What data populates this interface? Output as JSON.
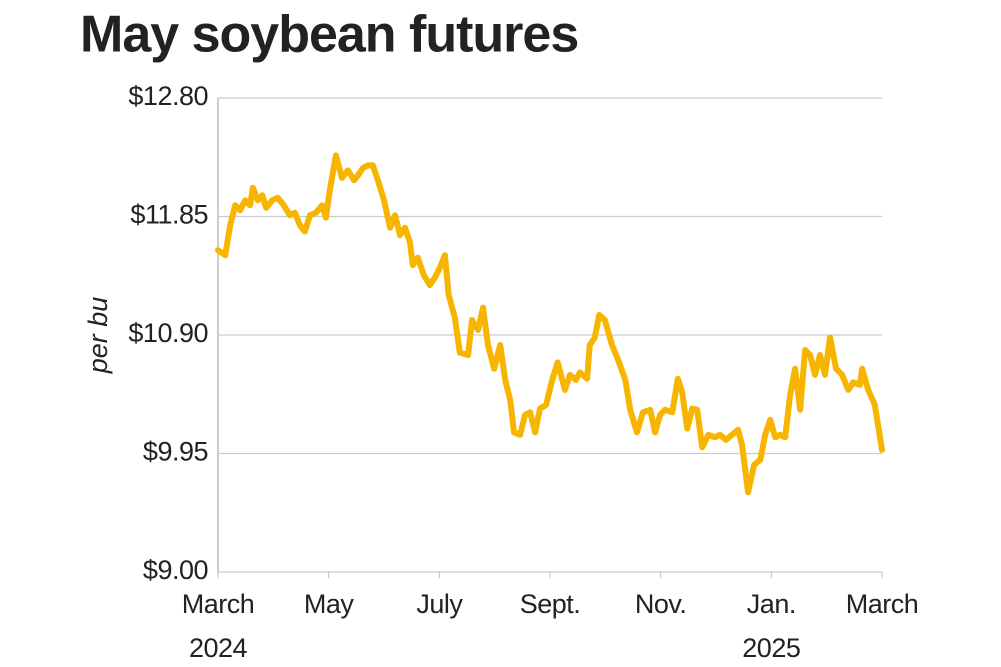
{
  "chart_data": {
    "type": "line",
    "title": "May soybean futures",
    "ylabel": "per bu",
    "ylim": [
      9.0,
      12.8
    ],
    "yticks": [
      {
        "value": 9.0,
        "label": "$9.00"
      },
      {
        "value": 9.95,
        "label": "$9.95"
      },
      {
        "value": 10.9,
        "label": "$10.90"
      },
      {
        "value": 11.85,
        "label": "$11.85"
      },
      {
        "value": 12.8,
        "label": "$12.80"
      }
    ],
    "xlim": [
      0,
      12
    ],
    "xticks": [
      {
        "value": 0,
        "label": "March",
        "sublabel": "2024"
      },
      {
        "value": 2,
        "label": "May"
      },
      {
        "value": 4,
        "label": "July"
      },
      {
        "value": 6,
        "label": "Sept."
      },
      {
        "value": 8,
        "label": "Nov."
      },
      {
        "value": 10,
        "label": "Jan.",
        "sublabel": "2025"
      },
      {
        "value": 12,
        "label": "March"
      }
    ],
    "grid": true,
    "x": [
      0,
      0.13,
      0.22,
      0.31,
      0.4,
      0.49,
      0.58,
      0.63,
      0.72,
      0.8,
      0.87,
      0.98,
      1.08,
      1.19,
      1.3,
      1.39,
      1.48,
      1.57,
      1.66,
      1.77,
      1.88,
      1.95,
      2.02,
      2.13,
      2.24,
      2.35,
      2.46,
      2.53,
      2.62,
      2.71,
      2.8,
      2.89,
      3.0,
      3.11,
      3.2,
      3.29,
      3.38,
      3.47,
      3.52,
      3.61,
      3.72,
      3.83,
      3.92,
      4.01,
      4.1,
      4.17,
      4.28,
      4.37,
      4.52,
      4.59,
      4.7,
      4.79,
      4.88,
      4.99,
      5.1,
      5.19,
      5.28,
      5.35,
      5.46,
      5.55,
      5.64,
      5.73,
      5.82,
      5.93,
      6.04,
      6.14,
      6.27,
      6.36,
      6.47,
      6.54,
      6.67,
      6.72,
      6.81,
      6.89,
      6.99,
      7.12,
      7.23,
      7.36,
      7.45,
      7.57,
      7.68,
      7.81,
      7.9,
      7.99,
      8.08,
      8.21,
      8.31,
      8.39,
      8.48,
      8.57,
      8.66,
      8.75,
      8.86,
      8.98,
      9.07,
      9.18,
      9.29,
      9.4,
      9.47,
      9.58,
      9.69,
      9.8,
      9.89,
      9.98,
      10.07,
      10.16,
      10.25,
      10.34,
      10.43,
      10.52,
      10.61,
      10.7,
      10.79,
      10.88,
      10.97,
      11.06,
      11.17,
      11.28,
      11.39,
      11.48,
      11.6,
      11.64,
      11.75,
      11.87,
      12.0
    ],
    "series": [
      {
        "color": "#f7b500",
        "values": [
          11.58,
          11.54,
          11.78,
          11.94,
          11.9,
          11.98,
          11.94,
          12.08,
          11.98,
          12.02,
          11.92,
          11.98,
          12.0,
          11.94,
          11.86,
          11.88,
          11.78,
          11.73,
          11.86,
          11.88,
          11.94,
          11.84,
          12.06,
          12.34,
          12.16,
          12.22,
          12.14,
          12.18,
          12.24,
          12.26,
          12.26,
          12.14,
          11.98,
          11.76,
          11.86,
          11.7,
          11.76,
          11.64,
          11.46,
          11.52,
          11.38,
          11.3,
          11.36,
          11.44,
          11.54,
          11.22,
          11.04,
          10.76,
          10.74,
          11.02,
          10.94,
          11.12,
          10.82,
          10.63,
          10.82,
          10.54,
          10.38,
          10.12,
          10.1,
          10.26,
          10.28,
          10.12,
          10.31,
          10.34,
          10.54,
          10.68,
          10.46,
          10.58,
          10.54,
          10.6,
          10.55,
          10.82,
          10.88,
          11.06,
          11.02,
          10.82,
          10.7,
          10.54,
          10.3,
          10.12,
          10.28,
          10.3,
          10.12,
          10.26,
          10.3,
          10.28,
          10.55,
          10.44,
          10.15,
          10.31,
          10.3,
          10.0,
          10.1,
          10.08,
          10.1,
          10.06,
          10.1,
          10.14,
          10.02,
          9.64,
          9.86,
          9.9,
          10.1,
          10.22,
          10.08,
          10.1,
          10.08,
          10.42,
          10.63,
          10.3,
          10.78,
          10.74,
          10.58,
          10.74,
          10.58,
          10.88,
          10.63,
          10.58,
          10.46,
          10.52,
          10.5,
          10.63,
          10.46,
          10.34,
          9.98
        ]
      }
    ]
  }
}
